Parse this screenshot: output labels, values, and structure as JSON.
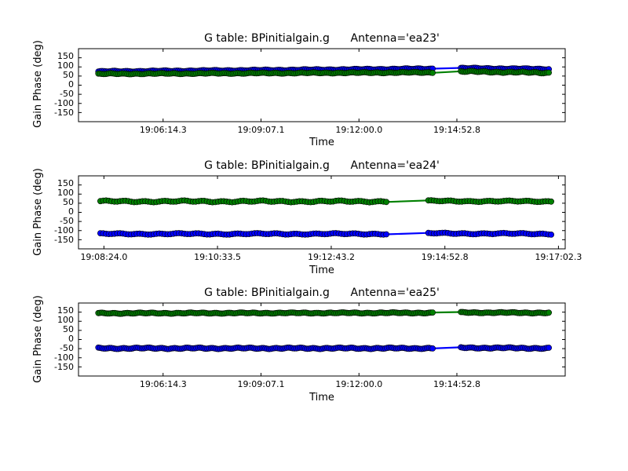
{
  "figure": {
    "background": "#ffffff",
    "series_colors": {
      "blue": "#0000ff",
      "green": "#008000"
    }
  },
  "chart_data": [
    {
      "type": "scatter",
      "title": "G table: BPinitialgain.g      Antenna='ea23'",
      "xlabel": "Time",
      "ylabel": "Gain Phase (deg)",
      "x_ticks": [
        "19:06:14.3",
        "19:09:07.1",
        "19:12:00.0",
        "19:14:52.8"
      ],
      "x_tick_seconds": [
        68774.3,
        68947.1,
        69120.0,
        69292.8
      ],
      "y_ticks": [
        150,
        100,
        50,
        0,
        -50,
        -100,
        -150
      ],
      "ylim": [
        -200,
        200
      ],
      "xlim_seconds": [
        68625.0,
        69484.0
      ],
      "grid": false,
      "legend": "none",
      "series": [
        {
          "color": "#0000ff",
          "marker_face": "#0000ff",
          "segments": [
            {
              "x_start": 68660.0,
              "x_end": 69250.0,
              "y_start": 75,
              "y_end": 90,
              "wiggle": 3
            },
            {
              "x_start": 69300.0,
              "x_end": 69455.0,
              "y_start": 93,
              "y_end": 88,
              "wiggle": 3
            }
          ]
        },
        {
          "color": "#008000",
          "marker_face": "#008000",
          "segments": [
            {
              "x_start": 68660.0,
              "x_end": 69250.0,
              "y_start": 62,
              "y_end": 70,
              "wiggle": 3
            },
            {
              "x_start": 69300.0,
              "x_end": 69455.0,
              "y_start": 75,
              "y_end": 68,
              "wiggle": 4
            }
          ]
        }
      ]
    },
    {
      "type": "scatter",
      "title": "G table: BPinitialgain.g      Antenna='ea24'",
      "xlabel": "Time",
      "ylabel": "Gain Phase (deg)",
      "x_ticks": [
        "19:08:24.0",
        "19:10:33.5",
        "19:12:43.2",
        "19:14:52.8",
        "19:17:02.3"
      ],
      "x_tick_seconds": [
        68904.0,
        69033.5,
        69163.2,
        69292.8,
        69422.3
      ],
      "y_ticks": [
        150,
        100,
        50,
        0,
        -50,
        -100,
        -150
      ],
      "ylim": [
        -200,
        200
      ],
      "xlim_seconds": [
        68875.0,
        69430.0
      ],
      "grid": false,
      "legend": "none",
      "series": [
        {
          "color": "#008000",
          "marker_face": "#008000",
          "segments": [
            {
              "x_start": 68900.0,
              "x_end": 69226.0,
              "y_start": 60,
              "y_end": 60,
              "wiggle": 5
            },
            {
              "x_start": 69274.0,
              "x_end": 69414.0,
              "y_start": 62,
              "y_end": 60,
              "wiggle": 4
            }
          ]
        },
        {
          "color": "#0000ff",
          "marker_face": "#0000ff",
          "segments": [
            {
              "x_start": 68900.0,
              "x_end": 69226.0,
              "y_start": -118,
              "y_end": -118,
              "wiggle": 4
            },
            {
              "x_start": 69274.0,
              "x_end": 69414.0,
              "y_start": -115,
              "y_end": -118,
              "wiggle": 4
            }
          ]
        }
      ]
    },
    {
      "type": "scatter",
      "title": "G table: BPinitialgain.g      Antenna='ea25'",
      "xlabel": "Time",
      "ylabel": "Gain Phase (deg)",
      "x_ticks": [
        "19:06:14.3",
        "19:09:07.1",
        "19:12:00.0",
        "19:14:52.8"
      ],
      "x_tick_seconds": [
        68774.3,
        68947.1,
        69120.0,
        69292.8
      ],
      "y_ticks": [
        150,
        100,
        50,
        0,
        -50,
        -100,
        -150
      ],
      "ylim": [
        -200,
        200
      ],
      "xlim_seconds": [
        68625.0,
        69484.0
      ],
      "grid": false,
      "legend": "none",
      "series": [
        {
          "color": "#008000",
          "marker_face": "#008000",
          "segments": [
            {
              "x_start": 68660.0,
              "x_end": 69250.0,
              "y_start": 144,
              "y_end": 146,
              "wiggle": 3
            },
            {
              "x_start": 69300.0,
              "x_end": 69455.0,
              "y_start": 148,
              "y_end": 146,
              "wiggle": 3
            }
          ]
        },
        {
          "color": "#0000ff",
          "marker_face": "#0000ff",
          "segments": [
            {
              "x_start": 68660.0,
              "x_end": 69250.0,
              "y_start": -48,
              "y_end": -48,
              "wiggle": 4
            },
            {
              "x_start": 69300.0,
              "x_end": 69455.0,
              "y_start": -45,
              "y_end": -48,
              "wiggle": 4
            }
          ]
        }
      ]
    }
  ]
}
